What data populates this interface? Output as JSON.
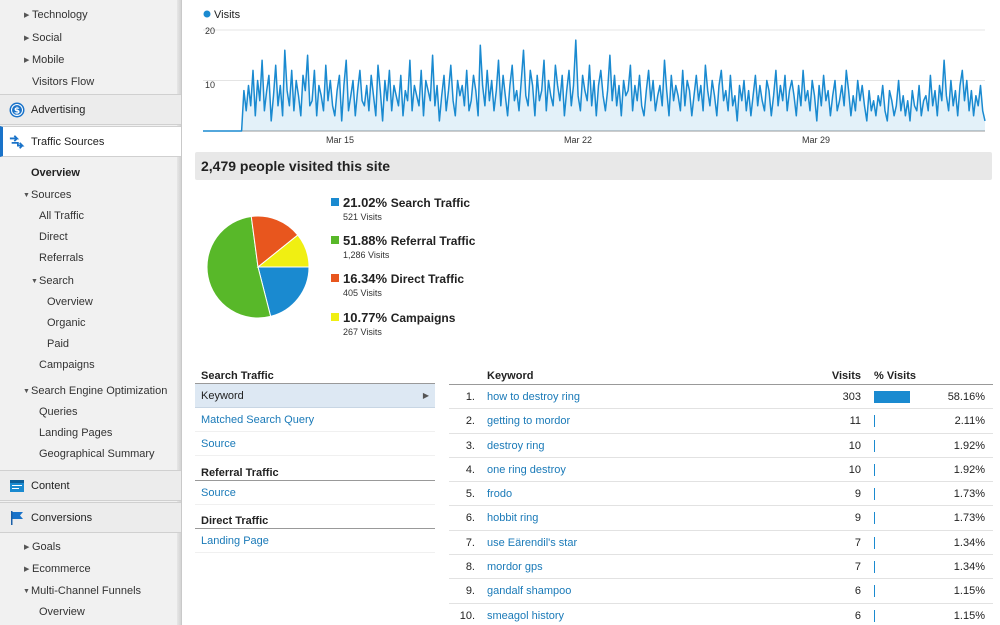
{
  "colors": {
    "accent": "#1a8ad0",
    "link": "#1a7ab8",
    "search": "#1a8ad0",
    "referral": "#58b829",
    "direct": "#e8561e",
    "campaigns": "#f0ef12"
  },
  "sidebar": {
    "top_items": [
      {
        "label": "Technology",
        "expandable": true
      },
      {
        "label": "Social",
        "expandable": true
      },
      {
        "label": "Mobile",
        "expandable": true
      },
      {
        "label": "Visitors Flow",
        "expandable": false
      }
    ],
    "advertising": {
      "label": "Advertising",
      "icon": "dollar-icon"
    },
    "traffic_sources": {
      "label": "Traffic Sources",
      "icon": "traffic-arrows-icon"
    },
    "traffic_items": {
      "overview": "Overview",
      "sources": "Sources",
      "all_traffic": "All Traffic",
      "direct": "Direct",
      "referrals": "Referrals",
      "search": "Search",
      "search_overview": "Overview",
      "organic": "Organic",
      "paid": "Paid",
      "campaigns": "Campaigns",
      "seo": "Search Engine Optimization",
      "queries": "Queries",
      "landing_pages": "Landing Pages",
      "geo_summary": "Geographical Summary"
    },
    "content": {
      "label": "Content",
      "icon": "content-icon"
    },
    "conversions": {
      "label": "Conversions",
      "icon": "flag-icon"
    },
    "conv_items": {
      "goals": "Goals",
      "ecommerce": "Ecommerce",
      "mcf": "Multi-Channel Funnels",
      "mcf_overview": "Overview"
    }
  },
  "visits_chart": {
    "legend": "Visits",
    "y_ticks": [
      "20",
      "10"
    ],
    "x_ticks": [
      "Mar 15",
      "Mar 22",
      "Mar 29"
    ]
  },
  "chart_data": [
    {
      "type": "area",
      "title": "",
      "series": [
        {
          "name": "Visits",
          "values": [
            0,
            0,
            0,
            0,
            0,
            0,
            0,
            0,
            0,
            0,
            0,
            0,
            0,
            0,
            0,
            0,
            0,
            0,
            8,
            4,
            9,
            5,
            12,
            3,
            10,
            6,
            14,
            4,
            8,
            11,
            2,
            7,
            13,
            5,
            9,
            3,
            16,
            8,
            5,
            12,
            4,
            10,
            7,
            3,
            11,
            8,
            15,
            5,
            6,
            12,
            3,
            9,
            7,
            4,
            13,
            6,
            10,
            5,
            3,
            8,
            11,
            2,
            9,
            14,
            4,
            7,
            10,
            3,
            8,
            12,
            6,
            5,
            9,
            4,
            11,
            7,
            3,
            13,
            8,
            2,
            10,
            6,
            12,
            4,
            9,
            7,
            5,
            11,
            3,
            8,
            6,
            14,
            4,
            9,
            7,
            5,
            12,
            3,
            10,
            8,
            6,
            15,
            5,
            9,
            2,
            7,
            11,
            4,
            8,
            13,
            6,
            3,
            10,
            7,
            9,
            5,
            12,
            4,
            6,
            11,
            8,
            3,
            17,
            9,
            5,
            12,
            6,
            10,
            4,
            8,
            14,
            5,
            11,
            7,
            3,
            9,
            13,
            6,
            8,
            4,
            10,
            16,
            7,
            5,
            12,
            9,
            3,
            11,
            6,
            8,
            14,
            4,
            10,
            7,
            5,
            13,
            9,
            6,
            11,
            3,
            8,
            12,
            5,
            9,
            18,
            7,
            4,
            11,
            8,
            6,
            13,
            5,
            10,
            3,
            9,
            12,
            7,
            4,
            8,
            15,
            6,
            11,
            5,
            9,
            3,
            10,
            7,
            8,
            13,
            4,
            9,
            6,
            11,
            5,
            3,
            8,
            12,
            6,
            10,
            4,
            7,
            9,
            5,
            14,
            8,
            3,
            11,
            6,
            9,
            7,
            4,
            12,
            5,
            10,
            8,
            3,
            7,
            11,
            6,
            9,
            4,
            13,
            8,
            5,
            10,
            7,
            3,
            9,
            12,
            6,
            8,
            4,
            11,
            5,
            7,
            2,
            9,
            6,
            10,
            4,
            8,
            3,
            7,
            11,
            5,
            9,
            6,
            4,
            10,
            8,
            3,
            7,
            12,
            5,
            9,
            6,
            11,
            4,
            8,
            10,
            7,
            3,
            9,
            5,
            12,
            6,
            8,
            4,
            10,
            7,
            2,
            9,
            5,
            11,
            6,
            8,
            3,
            7,
            10,
            4,
            6,
            9,
            5,
            12,
            8,
            3,
            7,
            4,
            10,
            6,
            9,
            5,
            2,
            8,
            4,
            6,
            3,
            7,
            5,
            9,
            4,
            2,
            8,
            6,
            3,
            5,
            10,
            4,
            7,
            3,
            6,
            2,
            8,
            5,
            4,
            9,
            3,
            6,
            7,
            4,
            11,
            5,
            8,
            3,
            9,
            6,
            14,
            7,
            4,
            10,
            5,
            8,
            3,
            9,
            12,
            6,
            10,
            4,
            8,
            3,
            7,
            5,
            9,
            4,
            2
          ]
        }
      ],
      "x_ticks": [
        "Mar 15",
        "Mar 22",
        "Mar 29"
      ],
      "ylim": [
        0,
        20
      ],
      "y_ticks": [
        10,
        20
      ],
      "grid": true,
      "legend_position": "top-left"
    },
    {
      "type": "pie",
      "title": "",
      "categories": [
        "Search Traffic",
        "Referral Traffic",
        "Direct Traffic",
        "Campaigns"
      ],
      "values": [
        21.02,
        51.88,
        16.34,
        10.77
      ],
      "counts": [
        521,
        1286,
        405,
        267
      ]
    },
    {
      "type": "table",
      "columns": [
        "Keyword",
        "Visits",
        "% Visits"
      ],
      "rows": [
        [
          "how to destroy ring",
          303,
          58.16
        ],
        [
          "getting to mordor",
          11,
          2.11
        ],
        [
          "destroy ring",
          10,
          1.92
        ],
        [
          "one ring destroy",
          10,
          1.92
        ],
        [
          "frodo",
          9,
          1.73
        ],
        [
          "hobbit ring",
          9,
          1.73
        ],
        [
          "use Eärendil's star",
          7,
          1.34
        ],
        [
          "mordor gps",
          7,
          1.34
        ],
        [
          "gandalf shampoo",
          6,
          1.15
        ],
        [
          "smeagol history",
          6,
          1.15
        ]
      ]
    }
  ],
  "summary": "2,479 people visited this site",
  "legend": [
    {
      "pct": "21.02%",
      "label": "Search Traffic",
      "count": "521 Visits",
      "color": "#1a8ad0"
    },
    {
      "pct": "51.88%",
      "label": "Referral Traffic",
      "count": "1,286 Visits",
      "color": "#58b829"
    },
    {
      "pct": "16.34%",
      "label": "Direct Traffic",
      "count": "405 Visits",
      "color": "#e8561e"
    },
    {
      "pct": "10.77%",
      "label": "Campaigns",
      "count": "267 Visits",
      "color": "#f0ef12"
    }
  ],
  "search_traffic": {
    "heading": "Search Traffic",
    "items": [
      "Keyword",
      "Matched Search Query",
      "Source"
    ]
  },
  "referral_traffic": {
    "heading": "Referral Traffic",
    "items": [
      "Source"
    ]
  },
  "direct_traffic": {
    "heading": "Direct Traffic",
    "items": [
      "Landing Page"
    ]
  },
  "keyword_table": {
    "headers": {
      "keyword": "Keyword",
      "visits": "Visits",
      "pct": "% Visits"
    },
    "rows": [
      {
        "num": "1.",
        "keyword": "how to destroy ring",
        "visits": "303",
        "pct": "58.16%",
        "share": 58.16
      },
      {
        "num": "2.",
        "keyword": "getting to mordor",
        "visits": "11",
        "pct": "2.11%",
        "share": 2.11
      },
      {
        "num": "3.",
        "keyword": "destroy ring",
        "visits": "10",
        "pct": "1.92%",
        "share": 1.92
      },
      {
        "num": "4.",
        "keyword": "one ring destroy",
        "visits": "10",
        "pct": "1.92%",
        "share": 1.92
      },
      {
        "num": "5.",
        "keyword": "frodo",
        "visits": "9",
        "pct": "1.73%",
        "share": 1.73
      },
      {
        "num": "6.",
        "keyword": "hobbit ring",
        "visits": "9",
        "pct": "1.73%",
        "share": 1.73
      },
      {
        "num": "7.",
        "keyword": "use Eärendil's star",
        "visits": "7",
        "pct": "1.34%",
        "share": 1.34
      },
      {
        "num": "8.",
        "keyword": "mordor gps",
        "visits": "7",
        "pct": "1.34%",
        "share": 1.34
      },
      {
        "num": "9.",
        "keyword": "gandalf shampoo",
        "visits": "6",
        "pct": "1.15%",
        "share": 1.15
      },
      {
        "num": "10.",
        "keyword": "smeagol history",
        "visits": "6",
        "pct": "1.15%",
        "share": 1.15
      }
    ]
  }
}
